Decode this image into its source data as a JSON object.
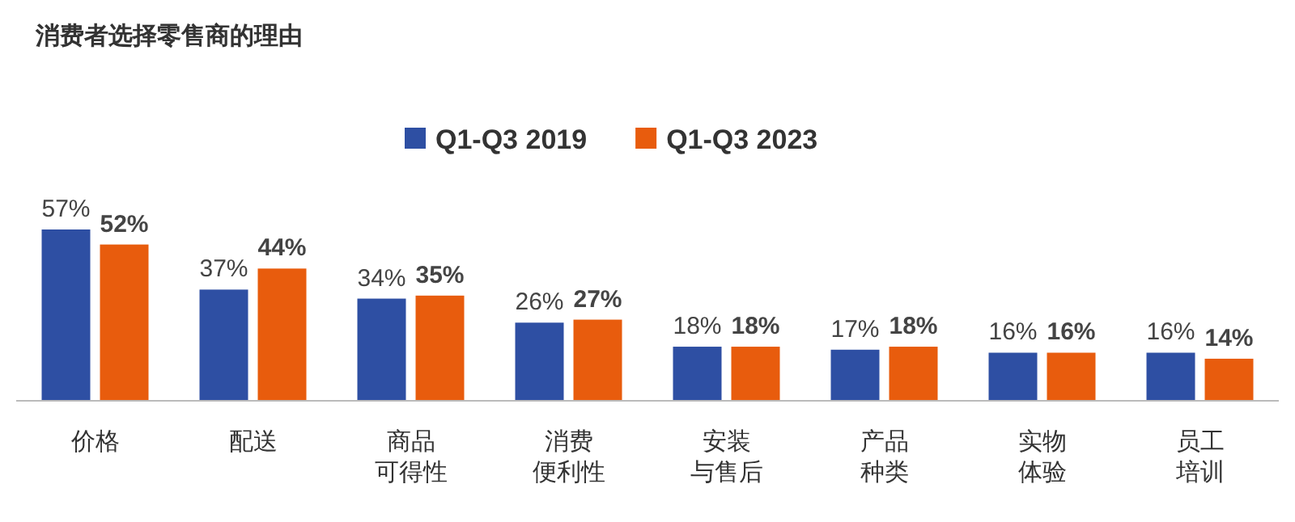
{
  "chart_data": {
    "type": "bar",
    "title": "消费者选择零售商的理由",
    "categories": [
      "价格",
      "配送",
      "商品可得性",
      "消费便利性",
      "安装与售后",
      "产品种类",
      "实物体验",
      "员工培训"
    ],
    "series": [
      {
        "name": "Q1-Q3 2019",
        "color": "#2e4fa3",
        "values": [
          57,
          37,
          34,
          26,
          18,
          17,
          16,
          16
        ],
        "value_labels": [
          "57%",
          "37%",
          "34%",
          "26%",
          "18%",
          "17%",
          "16%",
          "16%"
        ]
      },
      {
        "name": "Q1-Q3 2023",
        "color": "#e85c0d",
        "values": [
          52,
          44,
          35,
          27,
          18,
          18,
          16,
          14
        ],
        "value_labels": [
          "52%",
          "44%",
          "35%",
          "27%",
          "18%",
          "18%",
          "16%",
          "14%"
        ]
      }
    ],
    "legend": "top"
  }
}
